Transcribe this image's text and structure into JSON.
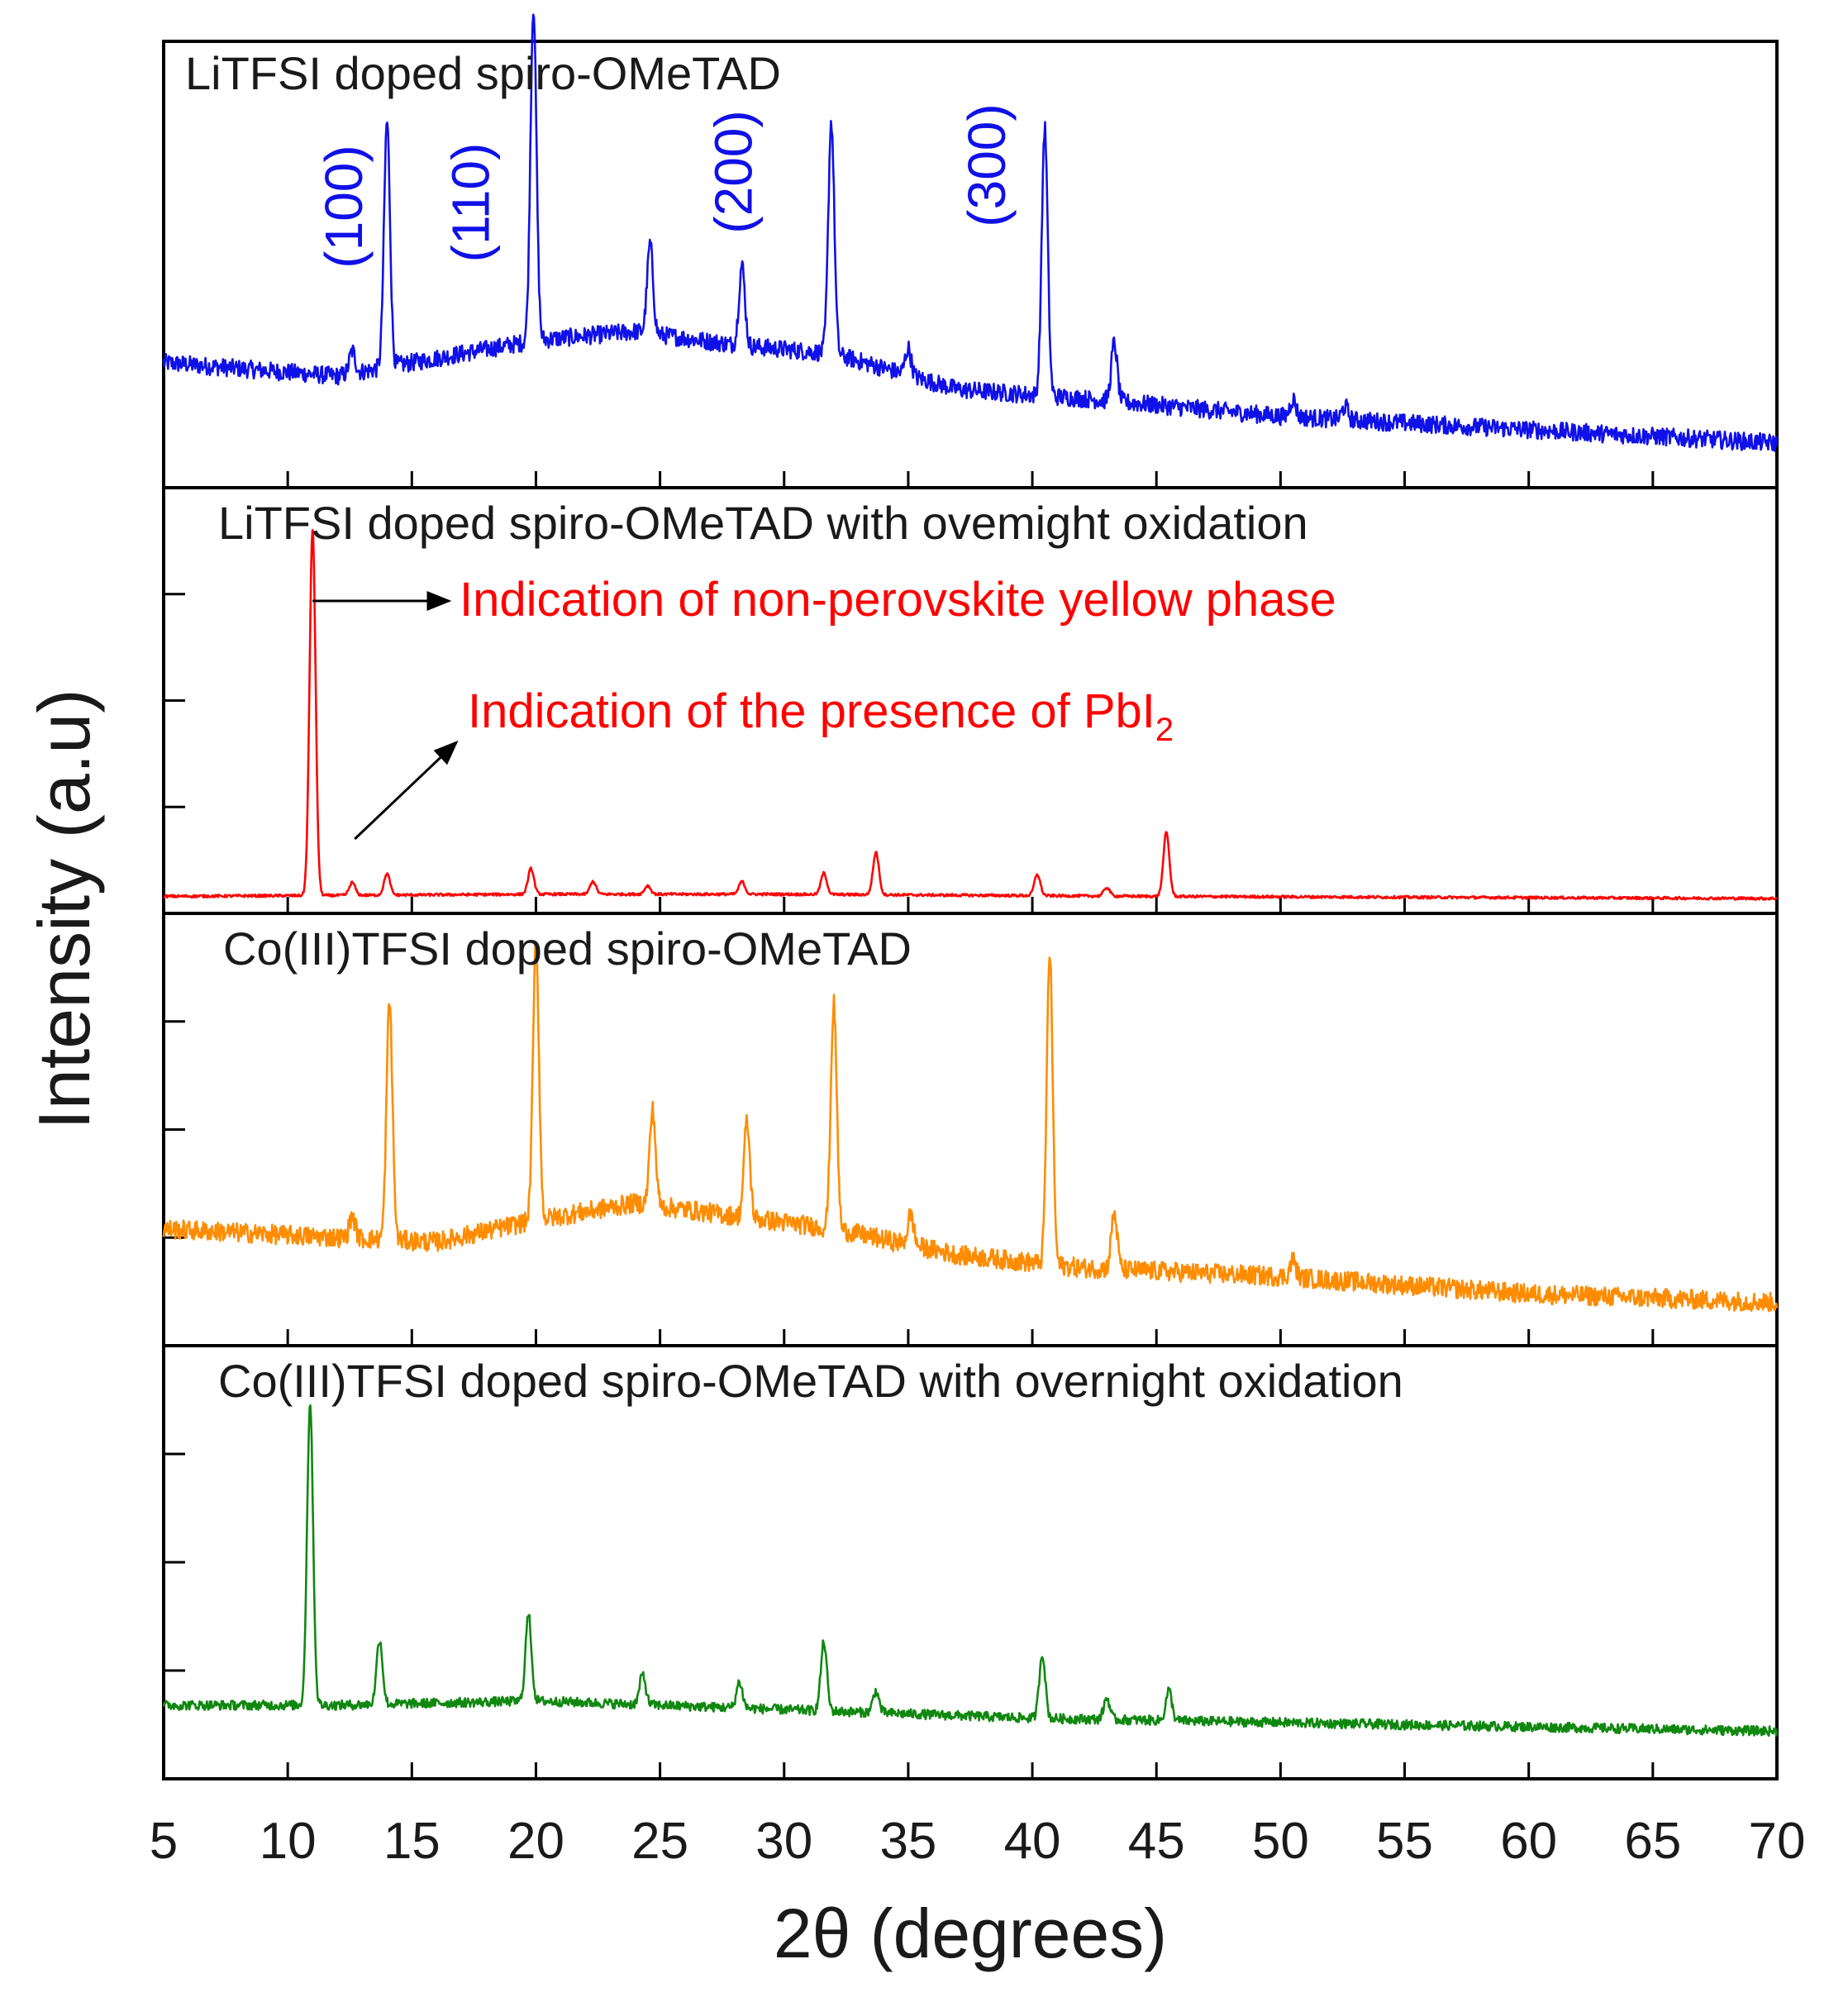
{
  "chart_data": {
    "type": "line",
    "xlabel": "2θ (degrees)",
    "ylabel": "Intensity (a.u)",
    "xlim": [
      5,
      70
    ],
    "x_ticks": [
      5,
      10,
      15,
      20,
      25,
      30,
      35,
      40,
      45,
      50,
      55,
      60,
      65,
      70
    ],
    "series": [
      {
        "name": "LiTFSI doped spiro-OMeTAD",
        "label": "LiTFSI doped spiro-OMeTAD",
        "color": "#1010e8",
        "ylim": [
          0,
          1
        ],
        "baseline": [
          [
            5,
            0.28
          ],
          [
            12,
            0.25
          ],
          [
            16,
            0.29
          ],
          [
            20,
            0.33
          ],
          [
            24,
            0.35
          ],
          [
            28,
            0.32
          ],
          [
            32,
            0.3
          ],
          [
            37,
            0.22
          ],
          [
            42,
            0.2
          ],
          [
            50,
            0.16
          ],
          [
            60,
            0.13
          ],
          [
            70,
            0.1
          ]
        ],
        "peaks": [
          [
            12.6,
            0.05
          ],
          [
            14.0,
            0.55
          ],
          [
            19.9,
            0.75
          ],
          [
            24.6,
            0.2
          ],
          [
            28.3,
            0.18
          ],
          [
            31.9,
            0.52
          ],
          [
            35.0,
            0.06
          ],
          [
            40.5,
            0.6
          ],
          [
            43.3,
            0.13
          ],
          [
            50.5,
            0.04
          ],
          [
            52.6,
            0.03
          ]
        ],
        "noise": 0.04,
        "y_ticks": []
      },
      {
        "name": "LiTFSI doped spiro-OMeTAD with ovemight oxidation",
        "label": "LiTFSI doped spiro-OMeTAD with ovemight oxidation",
        "color": "#ff0000",
        "ylim": [
          0,
          1
        ],
        "baseline": [
          [
            5,
            0.04
          ],
          [
            20,
            0.045
          ],
          [
            30,
            0.045
          ],
          [
            45,
            0.04
          ],
          [
            70,
            0.035
          ]
        ],
        "peaks": [
          [
            11.0,
            0.86
          ],
          [
            12.6,
            0.03
          ],
          [
            14.0,
            0.05
          ],
          [
            19.8,
            0.06
          ],
          [
            22.3,
            0.03
          ],
          [
            24.5,
            0.02
          ],
          [
            28.3,
            0.03
          ],
          [
            31.6,
            0.05
          ],
          [
            33.7,
            0.1
          ],
          [
            40.2,
            0.05
          ],
          [
            43.0,
            0.02
          ],
          [
            45.4,
            0.15
          ]
        ],
        "noise": 0.006,
        "y_ticks": [
          0,
          0.25,
          0.5,
          0.75
        ]
      },
      {
        "name": "Co(III)TFSI doped spiro-OMeTAD",
        "label": "Co(III)TFSI doped spiro-OMeTAD",
        "color": "#ff8c00",
        "ylim": [
          0,
          1
        ],
        "baseline": [
          [
            5,
            0.27
          ],
          [
            12,
            0.25
          ],
          [
            16,
            0.24
          ],
          [
            20,
            0.29
          ],
          [
            24,
            0.33
          ],
          [
            28,
            0.3
          ],
          [
            32,
            0.27
          ],
          [
            37,
            0.21
          ],
          [
            42,
            0.18
          ],
          [
            50,
            0.16
          ],
          [
            60,
            0.12
          ],
          [
            70,
            0.1
          ]
        ],
        "peaks": [
          [
            12.6,
            0.05
          ],
          [
            14.1,
            0.55
          ],
          [
            20.0,
            0.64
          ],
          [
            24.7,
            0.22
          ],
          [
            28.5,
            0.22
          ],
          [
            32.0,
            0.52
          ],
          [
            35.1,
            0.07
          ],
          [
            40.7,
            0.72
          ],
          [
            43.3,
            0.13
          ],
          [
            50.5,
            0.04
          ]
        ],
        "noise": 0.045,
        "y_ticks": [
          0,
          0.25,
          0.5,
          0.75
        ]
      },
      {
        "name": "Co(III)TFSI doped spiro-OMeTAD with overnight oxidation",
        "label": "Co(III)TFSI doped spiro-OMeTAD with overnight oxidation",
        "color": "#108810",
        "ylim": [
          0,
          1
        ],
        "baseline": [
          [
            5,
            0.17
          ],
          [
            12,
            0.17
          ],
          [
            20,
            0.18
          ],
          [
            25,
            0.17
          ],
          [
            30,
            0.16
          ],
          [
            40,
            0.14
          ],
          [
            50,
            0.13
          ],
          [
            60,
            0.12
          ],
          [
            70,
            0.11
          ]
        ],
        "peaks": [
          [
            10.9,
            0.7
          ],
          [
            13.7,
            0.15
          ],
          [
            19.7,
            0.2
          ],
          [
            24.3,
            0.07
          ],
          [
            28.2,
            0.06
          ],
          [
            31.6,
            0.16
          ],
          [
            33.7,
            0.05
          ],
          [
            40.4,
            0.15
          ],
          [
            43.0,
            0.05
          ],
          [
            45.5,
            0.07
          ]
        ],
        "noise": 0.022,
        "y_ticks": [
          0,
          0.25,
          0.5,
          0.75
        ]
      }
    ],
    "annotations": {
      "miller_indices": [
        {
          "text": "(100)",
          "x": 12.4
        },
        {
          "text": "(110)",
          "x": 17.5
        },
        {
          "text": "(200)",
          "x": 28.1
        },
        {
          "text": "(300)",
          "x": 38.3
        }
      ],
      "notes": [
        {
          "text": "Indication of non-perovskite yellow phase",
          "color": "#ff0000",
          "from_x": 11.0,
          "to_x": 16.5
        },
        {
          "text": "Indication of the presence of PbI",
          "subscript": "2",
          "color": "#ff0000",
          "from_x": 12.7,
          "to_x": 16.8
        }
      ]
    }
  }
}
